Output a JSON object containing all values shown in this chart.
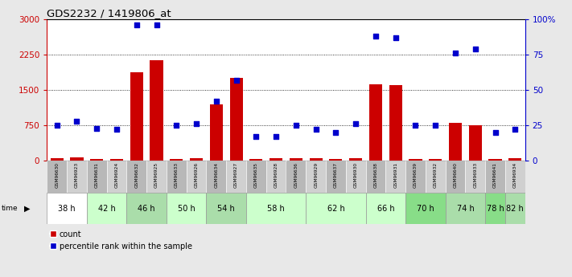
{
  "title": "GDS2232 / 1419806_at",
  "samples": [
    "GSM96630",
    "GSM96923",
    "GSM96631",
    "GSM96924",
    "GSM96632",
    "GSM96925",
    "GSM96633",
    "GSM96926",
    "GSM96634",
    "GSM96927",
    "GSM96635",
    "GSM96928",
    "GSM96636",
    "GSM96929",
    "GSM96637",
    "GSM96930",
    "GSM96638",
    "GSM96931",
    "GSM96639",
    "GSM96932",
    "GSM96640",
    "GSM96933",
    "GSM96641",
    "GSM96934"
  ],
  "time_groups": [
    {
      "label": "38 h",
      "start": 0,
      "end": 2,
      "color": "#ffffff"
    },
    {
      "label": "42 h",
      "start": 2,
      "end": 4,
      "color": "#ccffcc"
    },
    {
      "label": "46 h",
      "start": 4,
      "end": 6,
      "color": "#aaddaa"
    },
    {
      "label": "50 h",
      "start": 6,
      "end": 8,
      "color": "#ccffcc"
    },
    {
      "label": "54 h",
      "start": 8,
      "end": 10,
      "color": "#aaddaa"
    },
    {
      "label": "58 h",
      "start": 10,
      "end": 13,
      "color": "#ccffcc"
    },
    {
      "label": "62 h",
      "start": 13,
      "end": 16,
      "color": "#ccffcc"
    },
    {
      "label": "66 h",
      "start": 16,
      "end": 18,
      "color": "#ccffcc"
    },
    {
      "label": "70 h",
      "start": 18,
      "end": 20,
      "color": "#88dd88"
    },
    {
      "label": "74 h",
      "start": 20,
      "end": 22,
      "color": "#aaddaa"
    },
    {
      "label": "78 h",
      "start": 22,
      "end": 23,
      "color": "#88dd88"
    },
    {
      "label": "82 h",
      "start": 23,
      "end": 24,
      "color": "#aaddaa"
    }
  ],
  "counts": [
    50,
    70,
    40,
    35,
    1870,
    2130,
    30,
    50,
    1200,
    1750,
    40,
    55,
    60,
    50,
    40,
    50,
    1620,
    1600,
    40,
    30,
    800,
    750,
    40,
    50
  ],
  "percentile": [
    25,
    28,
    23,
    22,
    96,
    96,
    25,
    26,
    42,
    57,
    17,
    17,
    25,
    22,
    20,
    26,
    88,
    87,
    25,
    25,
    76,
    79,
    20,
    22
  ],
  "bar_color": "#cc0000",
  "dot_color": "#0000cc",
  "bg_color": "#e8e8e8",
  "plot_bg": "#ffffff",
  "ylim_left": [
    0,
    3000
  ],
  "ylim_right": [
    0,
    100
  ],
  "yticks_left": [
    0,
    750,
    1500,
    2250,
    3000
  ],
  "yticks_right": [
    0,
    25,
    50,
    75,
    100
  ],
  "ytick_labels_left": [
    "0",
    "750",
    "1500",
    "2250",
    "3000"
  ],
  "ytick_labels_right": [
    "0",
    "25",
    "50",
    "75",
    "100%"
  ],
  "hgrid_vals": [
    750,
    1500,
    2250
  ]
}
